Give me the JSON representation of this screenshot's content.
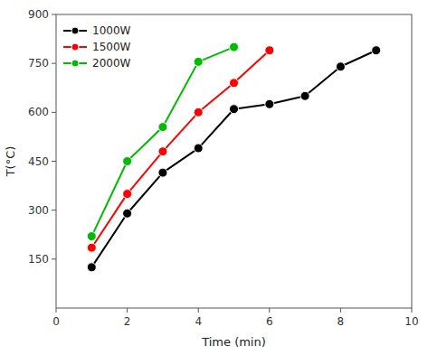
{
  "chart_data": {
    "type": "line",
    "xlabel": "Time (min)",
    "ylabel": "T(°C)",
    "series": [
      {
        "name": "1000W",
        "color": "#000000",
        "marker": "circle",
        "x": [
          1,
          2,
          3,
          4,
          5,
          6,
          7,
          8,
          9
        ],
        "values": [
          125,
          290,
          415,
          490,
          610,
          625,
          650,
          740,
          790
        ]
      },
      {
        "name": "1500W",
        "color": "#ff0000",
        "marker": "circle",
        "x": [
          1,
          2,
          3,
          4,
          5,
          6
        ],
        "values": [
          185,
          350,
          480,
          600,
          690,
          790
        ]
      },
      {
        "name": "2000W",
        "color": "#00bb00",
        "marker": "circle",
        "x": [
          1,
          2,
          3,
          4,
          5
        ],
        "values": [
          220,
          450,
          555,
          755,
          800
        ]
      }
    ],
    "xlim": [
      0,
      10
    ],
    "ylim": [
      0,
      900
    ],
    "xticks": [
      0,
      2,
      4,
      6,
      8,
      10
    ],
    "yticks": [
      150,
      300,
      450,
      600,
      750,
      900
    ],
    "grid": false,
    "legend": "upper left"
  }
}
